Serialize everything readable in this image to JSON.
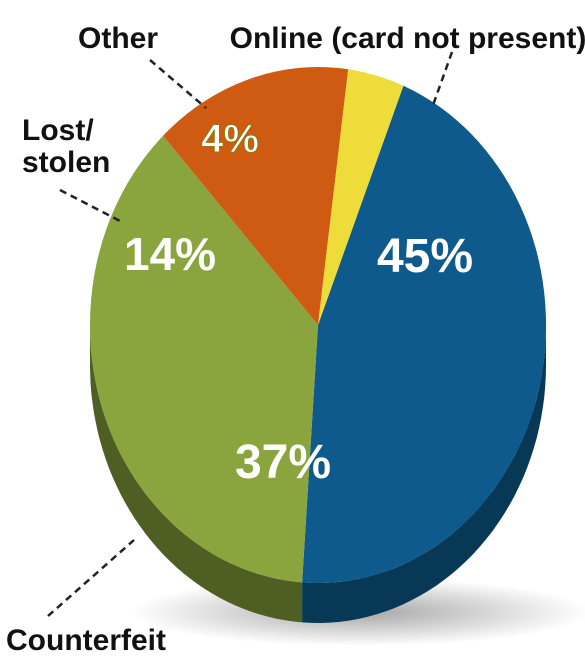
{
  "chart_data": {
    "type": "pie",
    "categories": [
      "Online (card not present)",
      "Counterfeit",
      "Lost/ stolen",
      "Other"
    ],
    "values": [
      45,
      37,
      14,
      4
    ],
    "value_labels": [
      "45%",
      "37%",
      "14%",
      "4%"
    ],
    "colors": [
      "#0e5a8c",
      "#8ba53e",
      "#cf5a12",
      "#eedc3a"
    ],
    "side_colors": [
      "#073957",
      "#4f5e22",
      "#7a340a",
      "#8c8120"
    ],
    "three_d": true,
    "legend": "none",
    "title": "",
    "label_lines": [
      [
        "Online (card not present)"
      ],
      [
        "Counterfeit"
      ],
      [
        "Lost/",
        "stolen"
      ],
      [
        "Other"
      ]
    ]
  }
}
